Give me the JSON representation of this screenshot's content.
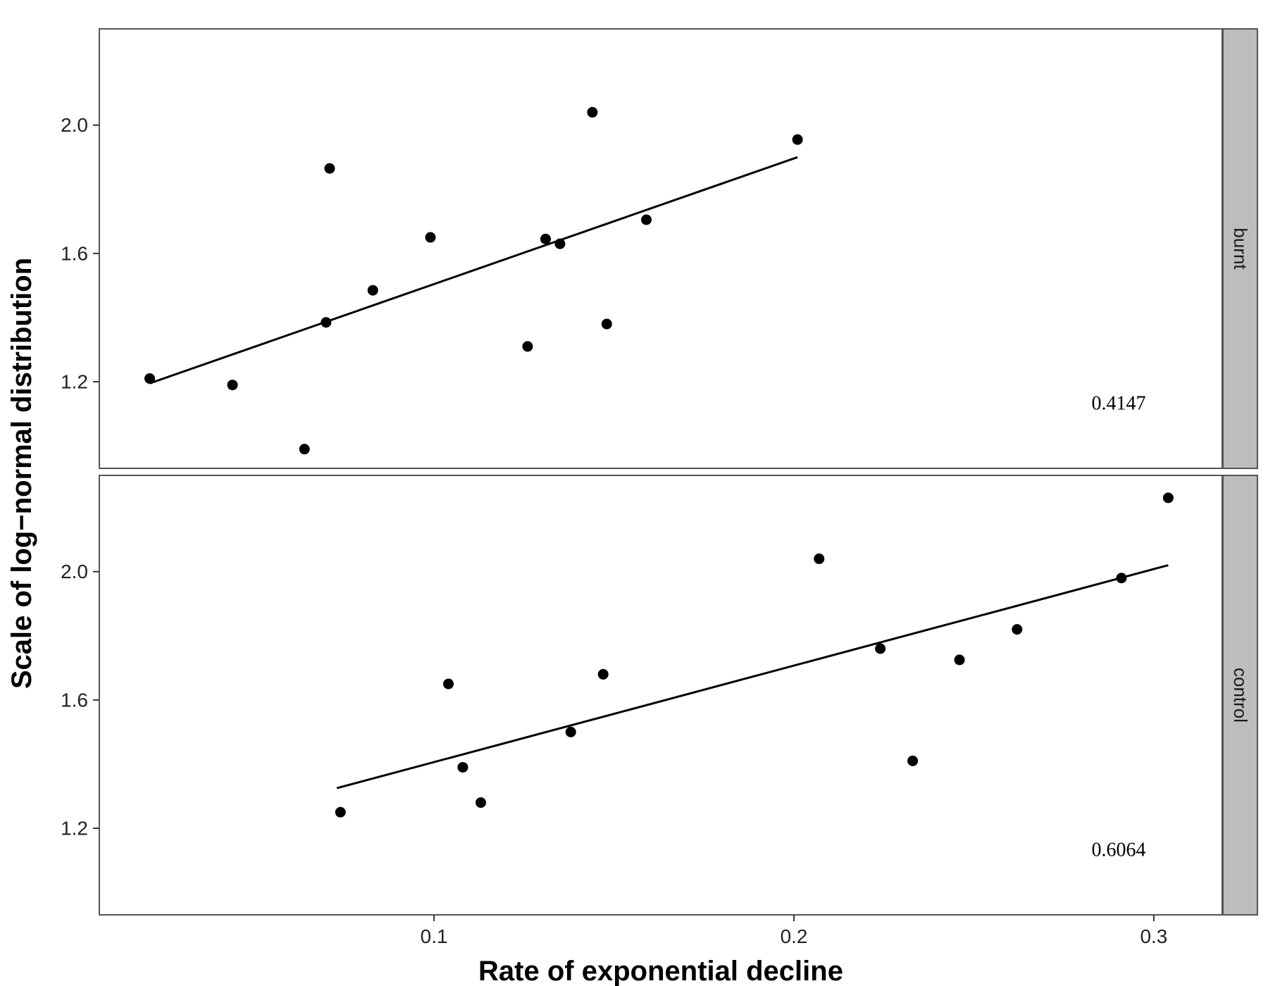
{
  "chart_data": {
    "type": "scatter",
    "xlabel": "Rate of exponential decline",
    "ylabel": "Scale of log−normal distribution",
    "xlim": [
      0.007,
      0.319
    ],
    "ylim": [
      0.93,
      2.3
    ],
    "x_ticks": [
      {
        "value": 0.1,
        "label": "0.1"
      },
      {
        "value": 0.2,
        "label": "0.2"
      },
      {
        "value": 0.3,
        "label": "0.3"
      }
    ],
    "y_ticks": [
      {
        "value": 1.2,
        "label": "1.2"
      },
      {
        "value": 1.6,
        "label": "1.6"
      },
      {
        "value": 2.0,
        "label": "2.0"
      }
    ],
    "grid": false,
    "facets": [
      {
        "name": "burnt",
        "annotation": "0.4147",
        "points": [
          {
            "x": 0.021,
            "y": 1.21
          },
          {
            "x": 0.044,
            "y": 1.19
          },
          {
            "x": 0.064,
            "y": 0.99
          },
          {
            "x": 0.07,
            "y": 1.385
          },
          {
            "x": 0.071,
            "y": 1.865
          },
          {
            "x": 0.083,
            "y": 1.485
          },
          {
            "x": 0.099,
            "y": 1.65
          },
          {
            "x": 0.126,
            "y": 1.31
          },
          {
            "x": 0.131,
            "y": 1.645
          },
          {
            "x": 0.135,
            "y": 1.63
          },
          {
            "x": 0.144,
            "y": 2.04
          },
          {
            "x": 0.148,
            "y": 1.38
          },
          {
            "x": 0.159,
            "y": 1.705
          },
          {
            "x": 0.201,
            "y": 1.955
          }
        ],
        "fit": {
          "x": [
            0.021,
            0.201
          ],
          "y": [
            1.195,
            1.9
          ]
        }
      },
      {
        "name": "control",
        "annotation": "0.6064",
        "points": [
          {
            "x": 0.074,
            "y": 1.25
          },
          {
            "x": 0.104,
            "y": 1.65
          },
          {
            "x": 0.108,
            "y": 1.39
          },
          {
            "x": 0.113,
            "y": 1.28
          },
          {
            "x": 0.138,
            "y": 1.5
          },
          {
            "x": 0.147,
            "y": 1.68
          },
          {
            "x": 0.207,
            "y": 2.04
          },
          {
            "x": 0.224,
            "y": 1.76
          },
          {
            "x": 0.233,
            "y": 1.41
          },
          {
            "x": 0.246,
            "y": 1.725
          },
          {
            "x": 0.262,
            "y": 1.82
          },
          {
            "x": 0.291,
            "y": 1.98
          },
          {
            "x": 0.304,
            "y": 2.23
          }
        ],
        "fit": {
          "x": [
            0.073,
            0.304
          ],
          "y": [
            1.325,
            2.02
          ]
        }
      }
    ]
  }
}
